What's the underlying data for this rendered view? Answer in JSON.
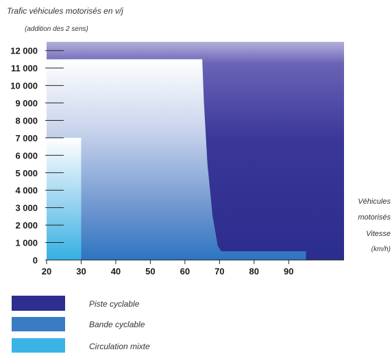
{
  "chart_data": {
    "type": "area",
    "ylabel": "Trafic véhicules motorisés en v/j",
    "ylabel_sub": "(addition des 2 sens)",
    "xlabel_lines": [
      "Véhicules",
      "motorisés",
      "Vitesse",
      "(km/h)"
    ],
    "y_ticks": [
      "0",
      "1 000",
      "2 000",
      "3 000",
      "4 000",
      "5 000",
      "6 000",
      "7 000",
      "8 000",
      "9 000",
      "10 000",
      "11 000",
      "12 000"
    ],
    "x_ticks": [
      "20",
      "30",
      "40",
      "50",
      "60",
      "70",
      "80",
      "90"
    ],
    "ylim": [
      0,
      12500
    ],
    "xlim": [
      20,
      106
    ],
    "zones": [
      {
        "name": "Piste cyclable",
        "color": "#2e2e8e",
        "region": "above the bande cyclable zone up to 12 500 v/j, 20–106 km/h"
      },
      {
        "name": "Bande cyclable",
        "color": "#3a7cc4",
        "boundary": [
          [
            30,
            11500
          ],
          [
            65,
            11500
          ],
          [
            65.5,
            9000
          ],
          [
            66.5,
            5500
          ],
          [
            68,
            2500
          ],
          [
            69.5,
            800
          ],
          [
            70.5,
            500
          ],
          [
            95,
            500
          ]
        ]
      },
      {
        "name": "Circulation mixte",
        "color": "#3ab4e6",
        "boundary": [
          [
            20,
            7000
          ],
          [
            30,
            7000
          ],
          [
            30,
            0
          ]
        ]
      }
    ],
    "grid": false
  },
  "legend": {
    "items": [
      {
        "label": "Piste cyclable",
        "color": "#2e2e8e"
      },
      {
        "label": "Bande cyclable",
        "color": "#3a7cc4"
      },
      {
        "label": "Circulation mixte",
        "color": "#3ab4e6"
      }
    ]
  }
}
